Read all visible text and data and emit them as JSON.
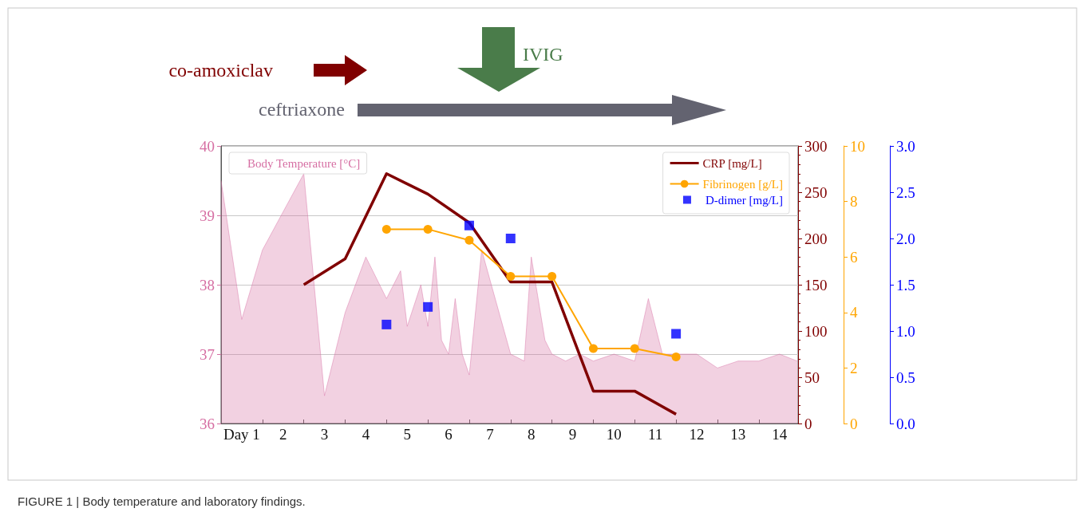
{
  "chart_data": [
    {
      "type": "line",
      "annotations": [
        "co-amoxiclav",
        "IVIG",
        "ceftriaxone",
        "FIGURE 1 | Body temperature and laboratory findings."
      ],
      "xlim": [
        0.5,
        14.45
      ],
      "xticks": [
        {
          "value": 1,
          "label": "Day 1"
        },
        2,
        3,
        4,
        5,
        6,
        7,
        8,
        9,
        10,
        11,
        12,
        13,
        14,
        {
          "value": 1.5,
          "label": null
        },
        {
          "value": 2.5,
          "label": null
        },
        {
          "value": 3.5,
          "label": null
        },
        {
          "value": 4.5,
          "label": null
        },
        {
          "value": 5.5,
          "label": null
        },
        {
          "value": 6.5,
          "label": null
        },
        {
          "value": 7.5,
          "label": null
        },
        {
          "value": 8.5,
          "label": null
        },
        {
          "value": 9.5,
          "label": null
        },
        {
          "value": 10.5,
          "label": null
        },
        {
          "value": 11.5,
          "label": null
        },
        {
          "value": 12.5,
          "label": null
        },
        {
          "value": 13.5,
          "label": null
        }
      ],
      "ylim": [
        36,
        40
      ],
      "yticks": [
        36,
        37,
        38,
        39,
        40
      ],
      "y2lim": [
        0,
        300
      ],
      "y2ticks": [
        0,
        50,
        100,
        150,
        200,
        250,
        300
      ],
      "y3lim": [
        0,
        10
      ],
      "y3ticks": [
        0,
        2,
        4,
        6,
        8,
        10
      ],
      "grid": "y",
      "legend": "top right",
      "series": [
        {
          "name": "Body Temperature [°C]",
          "type": "area",
          "color": "#d66fa3",
          "x": [
            0.5,
            1.0,
            1.5,
            2.5,
            3.0,
            3.5,
            4.0,
            4.5,
            4.84,
            5.0,
            5.33,
            5.5,
            5.67,
            5.83,
            6.0,
            6.16,
            6.33,
            6.5,
            6.8,
            7.5,
            7.83,
            8.0,
            8.33,
            8.5,
            8.83,
            9.17,
            9.5,
            10.0,
            10.5,
            10.83,
            11.17,
            11.5,
            12.0,
            12.5,
            13.0,
            13.5,
            14.0,
            14.43
          ],
          "values": [
            39.5,
            37.5,
            38.5,
            39.6,
            36.4,
            37.6,
            38.4,
            37.8,
            38.2,
            37.4,
            38.0,
            37.4,
            38.4,
            37.2,
            37.0,
            37.8,
            37.0,
            36.7,
            38.5,
            37.0,
            36.9,
            38.4,
            37.2,
            37.0,
            36.9,
            37.0,
            36.9,
            37.0,
            36.9,
            37.8,
            37.0,
            37.0,
            37.0,
            36.8,
            36.9,
            36.9,
            37.0,
            36.9
          ]
        },
        {
          "name": "CRP [mg/L]",
          "axis": "y2",
          "marker": "none",
          "color": "#800000",
          "x": [
            2.5,
            3.5,
            4.5,
            5.5,
            6.5,
            7.5,
            8.5,
            9.5,
            10.5,
            11.5
          ],
          "values": [
            150,
            178,
            270,
            248,
            217,
            153,
            153,
            35,
            35,
            10
          ]
        },
        {
          "name": "Fibrinogen [g/L]",
          "axis": "y3",
          "marker": "circle",
          "color": "#ffa500",
          "x": [
            4.5,
            5.5,
            6.5,
            7.5,
            8.5,
            9.5,
            10.5,
            11.5
          ],
          "values": [
            7.0,
            7.0,
            6.6,
            5.3,
            5.3,
            2.7,
            2.7,
            2.4
          ]
        }
      ]
    },
    {
      "type": "scatter",
      "xlim": [
        0.5,
        14.45
      ],
      "ylim": [
        0,
        3
      ],
      "yticks": [
        {
          "value": 0,
          "label": "0.0"
        },
        0.5,
        {
          "value": 1,
          "label": "1.0"
        },
        1.5,
        {
          "value": 2,
          "label": "2.0"
        },
        2.5,
        {
          "value": 3,
          "label": "3.0"
        }
      ],
      "tick_labels": "y",
      "legend": "top right",
      "series": [
        {
          "name": "D-dimer [mg/L]",
          "marker": "square",
          "color": "#0000ff",
          "x": [
            4.5,
            5.5,
            6.5,
            7.5,
            11.5
          ],
          "values": [
            1.07,
            1.26,
            2.14,
            2.0,
            0.97
          ]
        }
      ]
    }
  ]
}
